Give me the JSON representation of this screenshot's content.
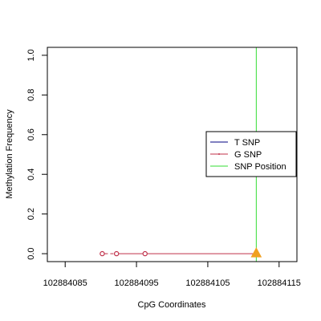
{
  "chart_data": {
    "type": "scatter",
    "xlabel": "CpG Coordinates",
    "ylabel": "Methylation Frequency",
    "xlim": [
      102884082.5,
      102884117.5
    ],
    "ylim": [
      -0.04,
      1.04
    ],
    "x_ticks": [
      102884085,
      102884095,
      102884105,
      102884115
    ],
    "y_ticks": [
      0.0,
      0.2,
      0.4,
      0.6,
      0.8,
      1.0
    ],
    "x_tick_labels": [
      "102884085",
      "102884095",
      "102884105",
      "102884115"
    ],
    "y_tick_labels": [
      "0.0",
      "0.2",
      "0.4",
      "0.6",
      "0.8",
      "1.0"
    ],
    "series": [
      {
        "name": "T SNP",
        "color": "#000080",
        "x": [],
        "y": []
      },
      {
        "name": "G SNP",
        "color": "#c0304a",
        "x": [
          102884090.2,
          102884092.2,
          102884096.2,
          102884111.8
        ],
        "y": [
          0.0,
          0.0,
          0.0,
          0.0
        ]
      }
    ],
    "snp_position": {
      "name": "SNP Position",
      "x": 102884111.8,
      "color": "#33dd33",
      "marker_color": "#f0a020"
    },
    "legend": {
      "position": "right",
      "entries": [
        {
          "label": "T SNP",
          "color": "#000080"
        },
        {
          "label": "G SNP",
          "color": "#c0304a"
        },
        {
          "label": "SNP Position",
          "color": "#33dd33"
        }
      ]
    },
    "grid": false
  }
}
